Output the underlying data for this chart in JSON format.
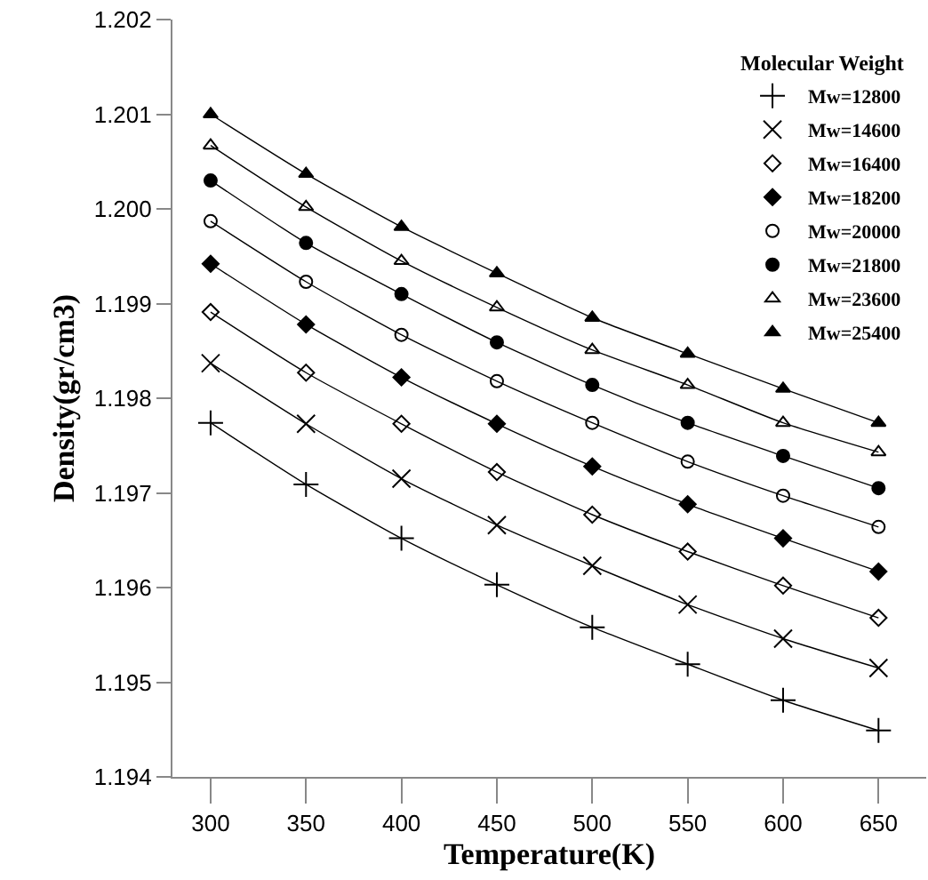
{
  "chart_data": {
    "type": "line",
    "xlabel": "Temperature(K)",
    "ylabel": "Density(gr/cm3)",
    "legend_title": "Molecular Weight",
    "legend": "top right",
    "grid": false,
    "x": [
      300,
      350,
      400,
      450,
      500,
      550,
      600,
      650
    ],
    "xlim": [
      280,
      675
    ],
    "xticks": [
      300,
      350,
      400,
      450,
      500,
      550,
      600,
      650
    ],
    "ylim": [
      1.194,
      1.202
    ],
    "yticks": [
      1.194,
      1.195,
      1.196,
      1.197,
      1.198,
      1.199,
      {
        "value": 1.2,
        "label": "1.200"
      },
      1.201,
      1.202
    ],
    "series": [
      {
        "name": "Mw=12800",
        "color": "#000000",
        "marker": "cross",
        "values": [
          1.19774,
          1.19709,
          1.19652,
          1.19603,
          1.19558,
          1.19519,
          1.19481,
          1.19449
        ]
      },
      {
        "name": "Mw=14600",
        "color": "#000000",
        "marker": "x",
        "values": [
          1.19837,
          1.19773,
          1.19715,
          1.19666,
          1.19623,
          1.19582,
          1.19546,
          1.19515
        ]
      },
      {
        "name": "Mw=16400",
        "color": "#000000",
        "marker": "diamond-open",
        "values": [
          1.19891,
          1.19827,
          1.19773,
          1.19722,
          1.19677,
          1.19638,
          1.19602,
          1.19568
        ]
      },
      {
        "name": "Mw=18200",
        "color": "#000000",
        "marker": "diamond",
        "values": [
          1.19942,
          1.19878,
          1.19822,
          1.19773,
          1.19728,
          1.19688,
          1.19652,
          1.19617
        ]
      },
      {
        "name": "Mw=20000",
        "color": "#000000",
        "marker": "circle-open",
        "values": [
          1.19987,
          1.19923,
          1.19867,
          1.19818,
          1.19774,
          1.19733,
          1.19697,
          1.19664
        ]
      },
      {
        "name": "Mw=21800",
        "color": "#000000",
        "marker": "circle",
        "values": [
          1.2003,
          1.19964,
          1.1991,
          1.19859,
          1.19814,
          1.19774,
          1.19739,
          1.19705
        ]
      },
      {
        "name": "Mw=23600",
        "color": "#000000",
        "marker": "triangle-open",
        "values": [
          1.20067,
          1.20002,
          1.19945,
          1.19896,
          1.19851,
          1.19814,
          1.19774,
          1.19743
        ]
      },
      {
        "name": "Mw=25400",
        "color": "#000000",
        "marker": "triangle",
        "values": [
          1.201,
          1.20037,
          1.19981,
          1.19932,
          1.19885,
          1.19847,
          1.1981,
          1.19774
        ]
      }
    ]
  }
}
